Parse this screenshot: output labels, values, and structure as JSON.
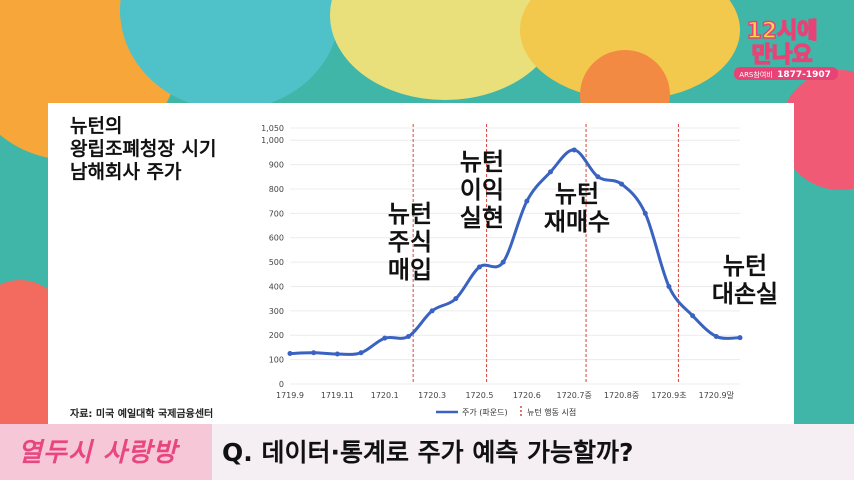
{
  "left_title": [
    "뉴턴의",
    "왕립조폐청장 시기",
    "남해회사 주가"
  ],
  "source": "자료: 미국 예일대학 국제금융센터",
  "question": "Q. 데이터·통계로 주가 예측 가능할까?",
  "bottom_logo": "열두시 사랑방",
  "corner_logo": {
    "line1": "12시에",
    "line2": "만나요",
    "line3": "ARS참여비",
    "phone": "1877-1907"
  },
  "chart_data": {
    "type": "line",
    "ylim": [
      0,
      1050
    ],
    "yticks": [
      0,
      100,
      200,
      300,
      400,
      500,
      600,
      700,
      800,
      900,
      "1,000",
      "1,050"
    ],
    "x_tick_labels": [
      "1719.9",
      "1719.11",
      "1720.1",
      "1720.3",
      "1720.5",
      "1720.6",
      "1720.7중",
      "1720.8중",
      "1720.9초",
      "1720.9말"
    ],
    "series": [
      {
        "name": "주가 (파운드)",
        "color": "#3a62c0",
        "values": [
          125,
          128,
          123,
          128,
          188,
          195,
          300,
          350,
          480,
          500,
          750,
          870,
          960,
          850,
          820,
          700,
          400,
          280,
          195,
          190
        ]
      }
    ],
    "event_legend": "뉴턴 행동 시점",
    "events": [
      {
        "index": 5.2,
        "label": [
          "뉴턴",
          "주식",
          "매입"
        ]
      },
      {
        "index": 8.3,
        "label": [
          "뉴턴",
          "이익",
          "실현"
        ]
      },
      {
        "index": 12.5,
        "label": [
          "뉴턴",
          "재매수"
        ]
      },
      {
        "index": 16.4,
        "label": [
          "뉴턴",
          "대손실"
        ]
      }
    ]
  }
}
